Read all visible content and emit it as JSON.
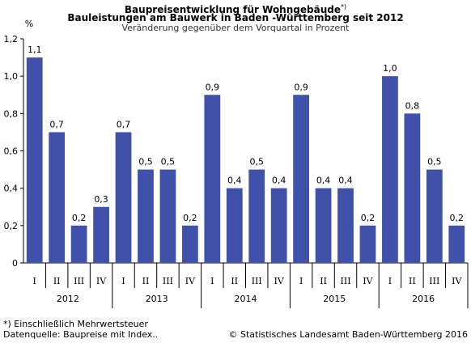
{
  "chart_data": {
    "type": "bar",
    "title": "Baupreisentwicklung für Wohngebäude",
    "title_footnote_mark": "*)",
    "subtitle_bold": "Bauleistungen am Bauwerk in Baden -Württemberg seit 2012",
    "subtitle": "Veränderung gegenüber dem Vorquartal in Prozent",
    "ylabel": "%",
    "ylim": [
      0,
      1.2
    ],
    "yticks": [
      "0",
      "0,2",
      "0,4",
      "0,6",
      "0,8",
      "1,0",
      "1,2"
    ],
    "yticks_values": [
      0,
      0.2,
      0.4,
      0.6,
      0.8,
      1.0,
      1.2
    ],
    "grid": false,
    "bar_color": "#3F51A8",
    "groups": [
      {
        "year": "2012",
        "quarters": [
          "I",
          "II",
          "III",
          "IV"
        ],
        "values": [
          1.1,
          0.7,
          0.2,
          0.3
        ],
        "labels": [
          "1,1",
          "0,7",
          "0,2",
          "0,3"
        ]
      },
      {
        "year": "2013",
        "quarters": [
          "I",
          "II",
          "III",
          "IV"
        ],
        "values": [
          0.7,
          0.5,
          0.5,
          0.2
        ],
        "labels": [
          "0,7",
          "0,5",
          "0,5",
          "0,2"
        ]
      },
      {
        "year": "2014",
        "quarters": [
          "I",
          "II",
          "III",
          "IV"
        ],
        "values": [
          0.9,
          0.4,
          0.5,
          0.4
        ],
        "labels": [
          "0,9",
          "0,4",
          "0,5",
          "0,4"
        ]
      },
      {
        "year": "2015",
        "quarters": [
          "I",
          "II",
          "III",
          "IV"
        ],
        "values": [
          0.9,
          0.4,
          0.4,
          0.2
        ],
        "labels": [
          "0,9",
          "0,4",
          "0,4",
          "0,2"
        ]
      },
      {
        "year": "2016",
        "quarters": [
          "I",
          "II",
          "III",
          "IV"
        ],
        "values": [
          1.0,
          0.8,
          0.5,
          0.2
        ],
        "labels": [
          "1,0",
          "0,8",
          "0,5",
          "0,2"
        ]
      }
    ]
  },
  "footer": {
    "footnote": "*) Einschließlich Mehrwertsteuer",
    "source": "Datenquelle: Baupreise mit Index..",
    "copyright": "© Statistisches Landesamt Baden-Württemberg 2016"
  }
}
